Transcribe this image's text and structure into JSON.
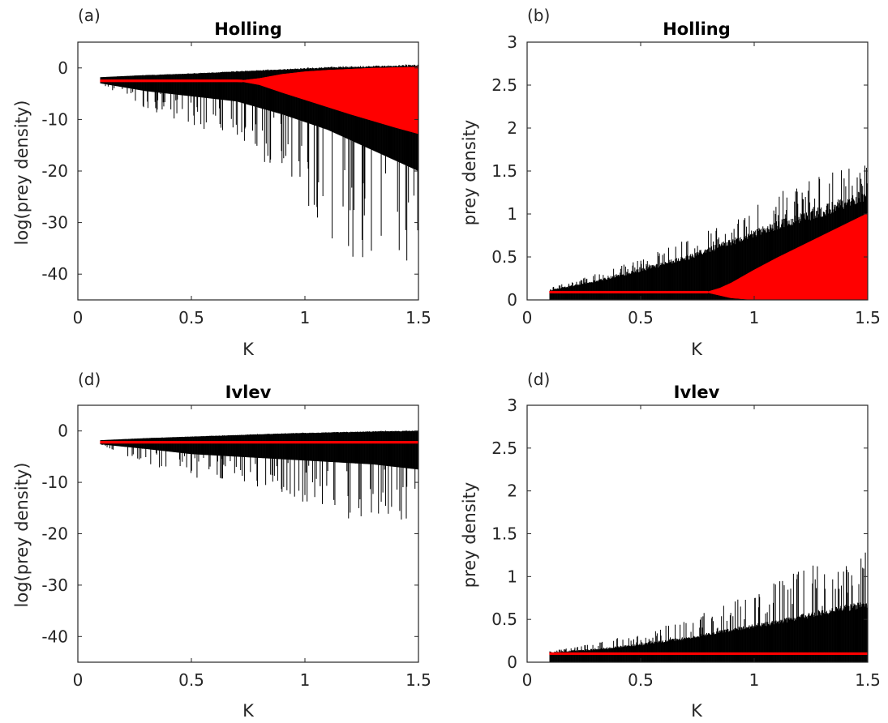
{
  "colors": {
    "scatter": "#000000",
    "envelope": "#ff0000",
    "axes": "#262626",
    "background": "#ffffff"
  },
  "chart_data": [
    {
      "type": "scatter",
      "panel_label": "(a)",
      "title": "Holling",
      "xlabel": "K",
      "ylabel": "log(prey density)",
      "xlim": [
        0,
        1.5
      ],
      "ylim": [
        -45,
        5
      ],
      "x_ticks": [
        0,
        0.5,
        1,
        1.5
      ],
      "x_tick_labels": [
        "0",
        "0.5",
        "1",
        "1.5"
      ],
      "y_ticks": [
        -40,
        -30,
        -20,
        -10,
        0
      ],
      "y_tick_labels": [
        "-40",
        "-30",
        "-20",
        "-10",
        "0"
      ],
      "grid": false,
      "series": [
        {
          "color": "#000000",
          "x": [
            0.1,
            0.3,
            0.5,
            0.7,
            0.9,
            1.1,
            1.3,
            1.5
          ],
          "upper": [
            -1.8,
            -1.4,
            -1.1,
            -0.7,
            -0.3,
            0.1,
            0.3,
            0.5
          ],
          "lower": [
            -3.0,
            -4.5,
            -5.5,
            -6.5,
            -9.0,
            -12.0,
            -16.0,
            -20.0
          ],
          "spike_min": [
            -3.0,
            -8.0,
            -11.0,
            -14.0,
            -21.0,
            -32.0,
            -43.0,
            -37.0
          ]
        },
        {
          "color": "#ff0000",
          "x": [
            0.1,
            0.3,
            0.5,
            0.7,
            0.8,
            0.9,
            1.0,
            1.1,
            1.2,
            1.3,
            1.4,
            1.5
          ],
          "upper": [
            -2.5,
            -2.5,
            -2.5,
            -2.5,
            -2.0,
            -1.2,
            -0.7,
            -0.4,
            -0.2,
            0.0,
            0.1,
            0.2
          ],
          "lower": [
            -2.5,
            -2.5,
            -2.5,
            -2.5,
            -3.3,
            -4.8,
            -6.2,
            -7.6,
            -9.0,
            -10.3,
            -11.6,
            -12.8
          ]
        }
      ]
    },
    {
      "type": "scatter",
      "panel_label": "(b)",
      "title": "Holling",
      "xlabel": "K",
      "ylabel": "prey density",
      "xlim": [
        0,
        1.5
      ],
      "ylim": [
        0,
        3
      ],
      "x_ticks": [
        0,
        0.5,
        1,
        1.5
      ],
      "x_tick_labels": [
        "0",
        "0.5",
        "1",
        "1.5"
      ],
      "y_ticks": [
        0,
        0.5,
        1,
        1.5,
        2,
        2.5,
        3
      ],
      "y_tick_labels": [
        "0",
        "0.5",
        "1",
        "1.5",
        "2",
        "2.5",
        "3"
      ],
      "grid": false,
      "series": [
        {
          "color": "#000000",
          "x": [
            0.1,
            0.3,
            0.5,
            0.7,
            0.9,
            1.1,
            1.3,
            1.5
          ],
          "upper": [
            0.12,
            0.23,
            0.37,
            0.52,
            0.72,
            0.92,
            1.1,
            1.3
          ],
          "lower": [
            0.0,
            0.0,
            0.0,
            0.0,
            0.0,
            0.0,
            0.0,
            0.0
          ],
          "spike_max": [
            0.14,
            0.3,
            0.48,
            0.7,
            0.95,
            1.25,
            1.45,
            1.62
          ]
        },
        {
          "color": "#ff0000",
          "x": [
            0.1,
            0.3,
            0.5,
            0.7,
            0.8,
            0.85,
            0.9,
            1.0,
            1.1,
            1.2,
            1.3,
            1.4,
            1.5
          ],
          "upper": [
            0.09,
            0.09,
            0.09,
            0.09,
            0.1,
            0.14,
            0.2,
            0.35,
            0.49,
            0.62,
            0.75,
            0.88,
            1.01
          ],
          "lower": [
            0.09,
            0.09,
            0.09,
            0.09,
            0.08,
            0.05,
            0.02,
            0.0,
            0.0,
            0.0,
            0.0,
            0.0,
            0.0
          ]
        }
      ]
    },
    {
      "type": "scatter",
      "panel_label": "(d)",
      "title": "Ivlev",
      "xlabel": "K",
      "ylabel": "log(prey density)",
      "xlim": [
        0,
        1.5
      ],
      "ylim": [
        -45,
        5
      ],
      "x_ticks": [
        0,
        0.5,
        1,
        1.5
      ],
      "x_tick_labels": [
        "0",
        "0.5",
        "1",
        "1.5"
      ],
      "y_ticks": [
        -40,
        -30,
        -20,
        -10,
        0
      ],
      "y_tick_labels": [
        "-40",
        "-30",
        "-20",
        "-10",
        "0"
      ],
      "grid": false,
      "series": [
        {
          "color": "#000000",
          "x": [
            0.1,
            0.3,
            0.5,
            0.7,
            0.9,
            1.1,
            1.3,
            1.5
          ],
          "upper": [
            -1.8,
            -1.4,
            -1.1,
            -0.8,
            -0.5,
            -0.3,
            -0.1,
            0.0
          ],
          "lower": [
            -2.6,
            -3.5,
            -4.5,
            -5.0,
            -5.5,
            -6.0,
            -6.5,
            -7.5
          ],
          "spike_min": [
            -2.6,
            -6.5,
            -9.0,
            -10.0,
            -12.0,
            -16.0,
            -18.5,
            -17.0
          ]
        },
        {
          "color": "#ff0000",
          "x": [
            0.1,
            0.5,
            1.0,
            1.5
          ],
          "upper": [
            -2.2,
            -2.2,
            -2.2,
            -2.2
          ],
          "lower": [
            -2.2,
            -2.2,
            -2.2,
            -2.2
          ]
        }
      ]
    },
    {
      "type": "scatter",
      "panel_label": "(d)",
      "title": "Ivlev",
      "xlabel": "K",
      "ylabel": "prey density",
      "xlim": [
        0,
        1.5
      ],
      "ylim": [
        0,
        3
      ],
      "x_ticks": [
        0,
        0.5,
        1,
        1.5
      ],
      "x_tick_labels": [
        "0",
        "0.5",
        "1",
        "1.5"
      ],
      "y_ticks": [
        0,
        0.5,
        1,
        1.5,
        2,
        2.5,
        3
      ],
      "y_tick_labels": [
        "0",
        "0.5",
        "1",
        "1.5",
        "2",
        "2.5",
        "3"
      ],
      "grid": false,
      "series": [
        {
          "color": "#000000",
          "x": [
            0.1,
            0.3,
            0.5,
            0.7,
            0.9,
            1.1,
            1.3,
            1.5
          ],
          "upper": [
            0.12,
            0.16,
            0.22,
            0.3,
            0.4,
            0.5,
            0.62,
            0.72
          ],
          "lower": [
            0.0,
            0.0,
            0.0,
            0.0,
            0.0,
            0.0,
            0.0,
            0.0
          ],
          "spike_max": [
            0.13,
            0.22,
            0.35,
            0.5,
            0.7,
            0.95,
            1.22,
            1.3
          ]
        },
        {
          "color": "#ff0000",
          "x": [
            0.1,
            0.5,
            1.0,
            1.5
          ],
          "upper": [
            0.1,
            0.1,
            0.1,
            0.1
          ],
          "lower": [
            0.1,
            0.1,
            0.1,
            0.1
          ]
        }
      ]
    }
  ]
}
